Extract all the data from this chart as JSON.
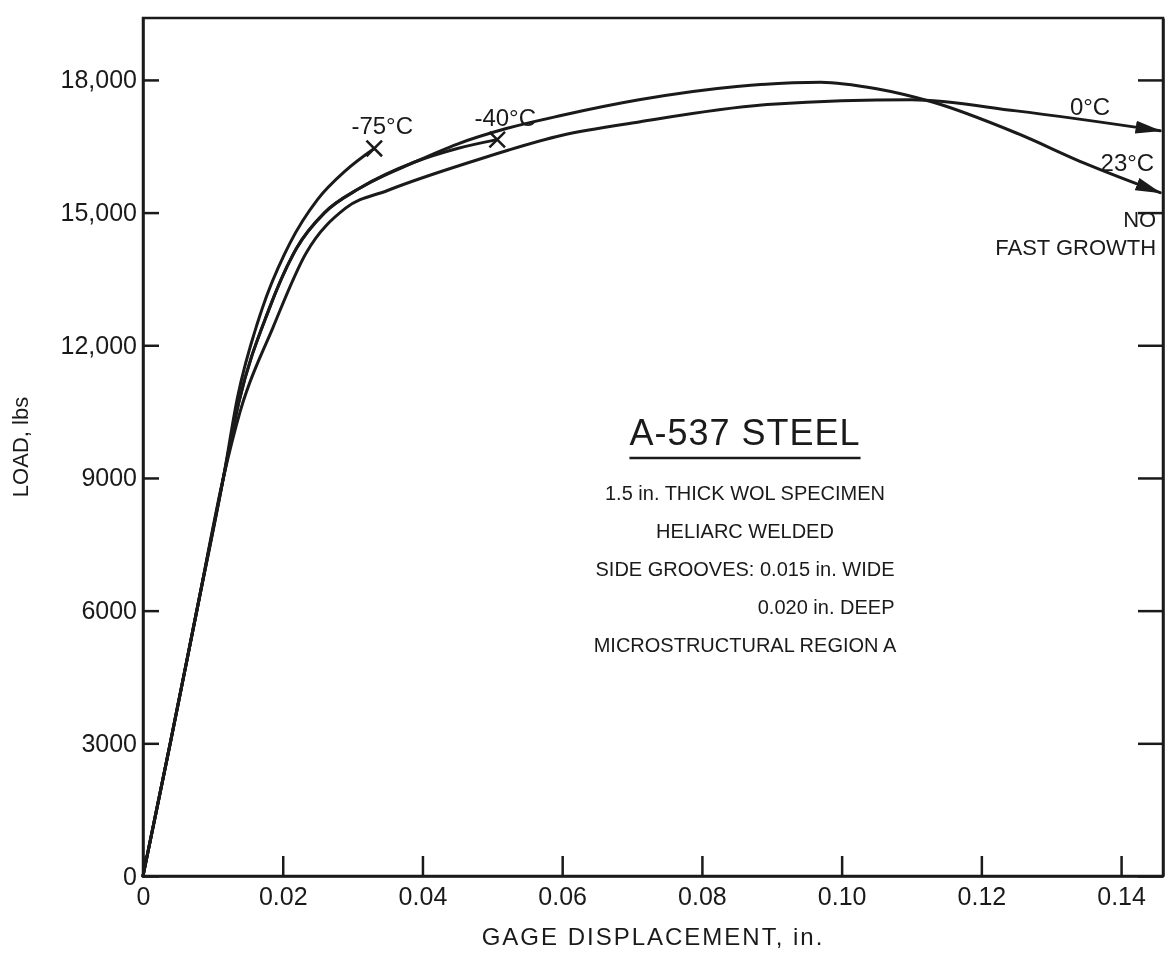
{
  "chart_data": {
    "type": "line",
    "title": "A-537 STEEL",
    "xlabel": "GAGE DISPLACEMENT, in.",
    "ylabel": "LOAD, lbs",
    "xlim": [
      0,
      0.146
    ],
    "ylim": [
      0,
      19400
    ],
    "xticks": [
      {
        "value": 0,
        "label": "0"
      },
      {
        "value": 0.02,
        "label": "0.02"
      },
      {
        "value": 0.04,
        "label": "0.04"
      },
      {
        "value": 0.06,
        "label": "0.06"
      },
      {
        "value": 0.08,
        "label": "0.08"
      },
      {
        "value": 0.1,
        "label": "0.10"
      },
      {
        "value": 0.12,
        "label": "0.12"
      },
      {
        "value": 0.14,
        "label": "0.14"
      }
    ],
    "yticks": [
      {
        "value": 0,
        "label": "0"
      },
      {
        "value": 3000,
        "label": "3000"
      },
      {
        "value": 6000,
        "label": "6000"
      },
      {
        "value": 9000,
        "label": "9000"
      },
      {
        "value": 12000,
        "label": "12,000"
      },
      {
        "value": 15000,
        "label": "15,000"
      },
      {
        "value": 18000,
        "label": "18,000"
      }
    ],
    "grid": false,
    "line_style": "solid",
    "marker": "none",
    "series": [
      {
        "name": "-75°C",
        "color": "#1a1a1a",
        "x": [
          0,
          0.0039,
          0.0077,
          0.0115,
          0.0135,
          0.017,
          0.021,
          0.025,
          0.029,
          0.0331
        ],
        "values": [
          0,
          3000,
          6000,
          9000,
          10800,
          12800,
          14300,
          15300,
          15950,
          16450
        ]
      },
      {
        "name": "-40°C",
        "color": "#1a1a1a",
        "x": [
          0,
          0.0039,
          0.0077,
          0.0115,
          0.0137,
          0.018,
          0.022,
          0.026,
          0.031,
          0.039,
          0.045,
          0.0507
        ],
        "values": [
          0,
          3000,
          6000,
          9000,
          10700,
          12800,
          14200,
          15000,
          15550,
          16150,
          16450,
          16650
        ]
      },
      {
        "name": "23°C",
        "color": "#1a1a1a",
        "x": [
          0,
          0.0039,
          0.0077,
          0.0115,
          0.0137,
          0.018,
          0.022,
          0.026,
          0.031,
          0.039,
          0.045,
          0.052,
          0.06,
          0.071,
          0.085,
          0.097,
          0.105,
          0.113,
          0.125,
          0.135,
          0.1456
        ],
        "values": [
          0,
          3000,
          6000,
          9000,
          10700,
          12800,
          14200,
          15000,
          15550,
          16150,
          16550,
          16900,
          17200,
          17550,
          17850,
          17950,
          17800,
          17500,
          16800,
          16100,
          15450
        ]
      },
      {
        "name": "0°C",
        "color": "#1a1a1a",
        "x": [
          0,
          0.0039,
          0.0077,
          0.0115,
          0.0139,
          0.0186,
          0.0234,
          0.029,
          0.035,
          0.047,
          0.06,
          0.071,
          0.09,
          0.11,
          0.125,
          0.1456
        ],
        "values": [
          0,
          3000,
          6000,
          9000,
          10500,
          12400,
          14100,
          15100,
          15500,
          16150,
          16750,
          17050,
          17450,
          17550,
          17300,
          16850
        ]
      },
      {
        "type": "scatter",
        "marker": "cross",
        "color": "#1a1a1a",
        "x": [
          0.0331,
          0.0507
        ],
        "values": [
          16450,
          16650
        ]
      }
    ],
    "annotations": [
      "1.5 in. THICK WOL SPECIMEN",
      "HELIARC WELDED",
      "SIDE GROOVES: 0.015 in. WIDE",
      "0.020 in. DEEP",
      "MICROSTRUCTURAL REGION A",
      {
        "text": "NO\nFAST GROWTH",
        "x": 0.1456,
        "y": 15450
      }
    ]
  }
}
